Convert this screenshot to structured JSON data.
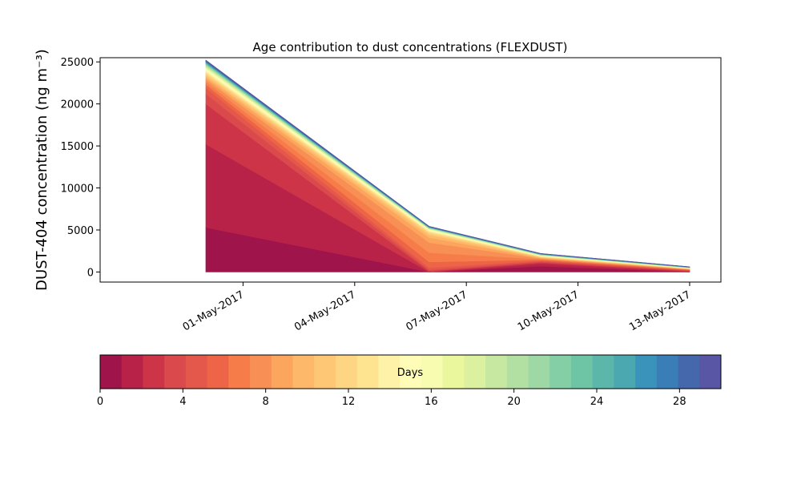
{
  "chart_data": [
    {
      "type": "area",
      "title": "Age contribution to dust concentrations (FLEXDUST)",
      "ylabel": "DUST-404 concentration (ng m⁻³)",
      "xlabel": "",
      "x": [
        "2017-04-30",
        "2017-05-06",
        "2017-05-09",
        "2017-05-13"
      ],
      "x_tick_labels": [
        "01-May-2017",
        "04-May-2017",
        "07-May-2017",
        "10-May-2017",
        "13-May-2017"
      ],
      "x_tick_dates": [
        "2017-05-01",
        "2017-05-04",
        "2017-05-07",
        "2017-05-10",
        "2017-05-13"
      ],
      "xlim": [
        "2017-04-28",
        "2017-05-13"
      ],
      "ylim": [
        -1200,
        25500
      ],
      "y_ticks": [
        0,
        5000,
        10000,
        15000,
        20000,
        25000
      ],
      "stacked": true,
      "series_note_colors_by_age": true,
      "series": [
        {
          "age_days": 0,
          "values": [
            5300,
            0,
            700,
            0
          ]
        },
        {
          "age_days": 1,
          "values": [
            9900,
            0,
            300,
            60
          ]
        },
        {
          "age_days": 2,
          "values": [
            4800,
            100,
            150,
            60
          ]
        },
        {
          "age_days": 3,
          "values": [
            1200,
            150,
            100,
            60
          ]
        },
        {
          "age_days": 4,
          "values": [
            700,
            250,
            100,
            40
          ]
        },
        {
          "age_days": 5,
          "values": [
            400,
            700,
            100,
            40
          ]
        },
        {
          "age_days": 6,
          "values": [
            300,
            1100,
            80,
            30
          ]
        },
        {
          "age_days": 7,
          "values": [
            300,
            1200,
            80,
            30
          ]
        },
        {
          "age_days": 8,
          "values": [
            250,
            600,
            60,
            30
          ]
        },
        {
          "age_days": 9,
          "values": [
            200,
            300,
            60,
            20
          ]
        },
        {
          "age_days": 10,
          "values": [
            200,
            200,
            50,
            20
          ]
        },
        {
          "age_days": 11,
          "values": [
            150,
            150,
            50,
            20
          ]
        },
        {
          "age_days": 12,
          "values": [
            150,
            100,
            40,
            20
          ]
        },
        {
          "age_days": 13,
          "values": [
            150,
            100,
            40,
            20
          ]
        },
        {
          "age_days": 14,
          "values": [
            120,
            60,
            30,
            15
          ]
        },
        {
          "age_days": 15,
          "values": [
            120,
            60,
            30,
            15
          ]
        },
        {
          "age_days": 16,
          "values": [
            100,
            40,
            20,
            10
          ]
        },
        {
          "age_days": 17,
          "values": [
            100,
            40,
            20,
            10
          ]
        },
        {
          "age_days": 18,
          "values": [
            100,
            40,
            20,
            10
          ]
        },
        {
          "age_days": 19,
          "values": [
            80,
            30,
            20,
            10
          ]
        },
        {
          "age_days": 20,
          "values": [
            80,
            30,
            20,
            10
          ]
        },
        {
          "age_days": 21,
          "values": [
            80,
            30,
            20,
            10
          ]
        },
        {
          "age_days": 22,
          "values": [
            60,
            20,
            15,
            10
          ]
        },
        {
          "age_days": 23,
          "values": [
            60,
            20,
            15,
            10
          ]
        },
        {
          "age_days": 24,
          "values": [
            60,
            20,
            15,
            10
          ]
        },
        {
          "age_days": 25,
          "values": [
            50,
            20,
            15,
            10
          ]
        },
        {
          "age_days": 26,
          "values": [
            50,
            20,
            15,
            10
          ]
        },
        {
          "age_days": 27,
          "values": [
            50,
            20,
            15,
            10
          ]
        },
        {
          "age_days": 28,
          "values": [
            50,
            20,
            15,
            10
          ]
        },
        {
          "age_days": 29,
          "values": [
            50,
            20,
            15,
            10
          ]
        }
      ],
      "grid": false
    },
    {
      "type": "colorbar",
      "label": "Days",
      "range": [
        0,
        30
      ],
      "ticks": [
        0,
        4,
        8,
        12,
        16,
        20,
        24,
        28
      ],
      "colors": [
        "#a0144c",
        "#b82248",
        "#cd3447",
        "#da4a4c",
        "#e4574b",
        "#ed6446",
        "#f67d4a",
        "#f88f54",
        "#fca55d",
        "#fdb969",
        "#fdc775",
        "#fed683",
        "#fee491",
        "#fef2a8",
        "#fffcb7",
        "#f7fcb1",
        "#eaf79d",
        "#dbf1a0",
        "#c7e8a1",
        "#b2e0a2",
        "#9ed8a4",
        "#84cfa5",
        "#6ec5a5",
        "#5cb7aa",
        "#4ba7b0",
        "#3a93bb",
        "#3a7eb8",
        "#4568ac",
        "#5956a5"
      ]
    }
  ]
}
